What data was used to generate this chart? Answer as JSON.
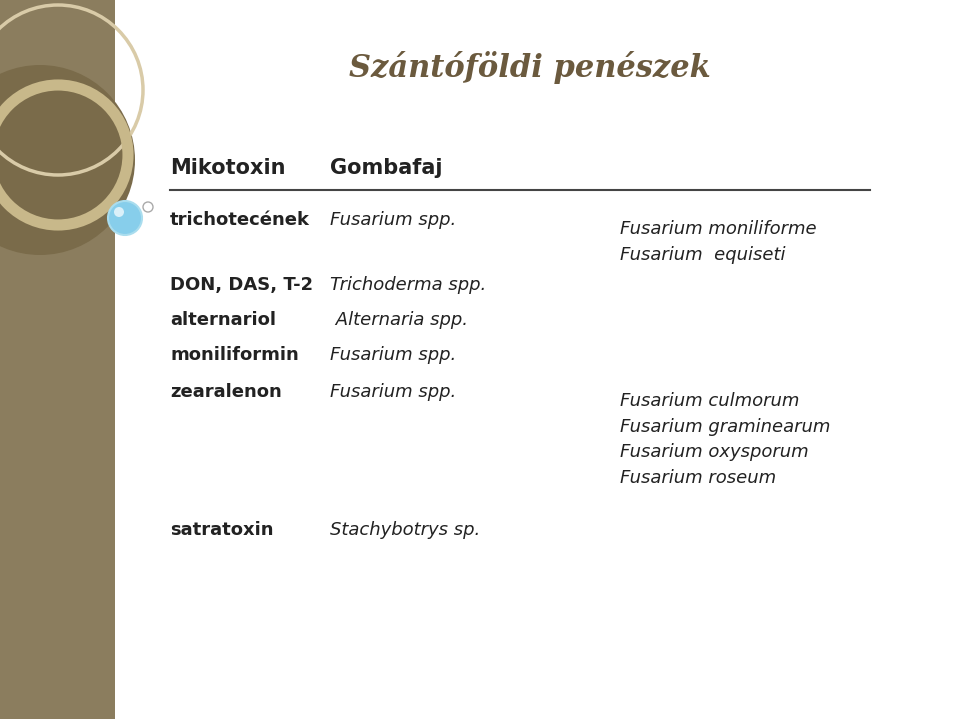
{
  "title": "Szántóföldi penészek",
  "title_color": "#6b5a3e",
  "bg_color": "#ffffff",
  "sidebar_color": "#8b7d5e",
  "col1_header": "Mikotoxin",
  "col2_header": "Gombafaj",
  "rows": [
    {
      "col1": "trichotecének",
      "col1_bold": true,
      "col2": "Fusarium spp.",
      "col2_italic": true,
      "col3": "Fusarium moniliforme\nFusarium  equiseti",
      "col3_italic": true
    },
    {
      "col1": "DON, DAS, T-2",
      "col1_bold": true,
      "col2": "Trichoderma spp.",
      "col2_italic": true,
      "col3": "",
      "col3_italic": true
    },
    {
      "col1": "alternariol",
      "col1_bold": true,
      "col2": " Alternaria spp.",
      "col2_italic": true,
      "col3": "",
      "col3_italic": true
    },
    {
      "col1": "moniliformin",
      "col1_bold": true,
      "col2": "Fusarium spp.",
      "col2_italic": true,
      "col3": "",
      "col3_italic": true
    },
    {
      "col1": "zearalenon",
      "col1_bold": true,
      "col2": "Fusarium spp.",
      "col2_italic": true,
      "col3": "Fusarium culmorum\nFusarium graminearum\nFusarium oxysporum\nFusarium roseum",
      "col3_italic": true
    },
    {
      "col1": "satratoxin",
      "col1_bold": true,
      "col2": "Stachybotrys sp.",
      "col2_italic": true,
      "col3": "",
      "col3_italic": true
    }
  ],
  "text_color": "#222222",
  "header_fontsize": 15,
  "body_fontsize": 13,
  "title_fontsize": 22
}
